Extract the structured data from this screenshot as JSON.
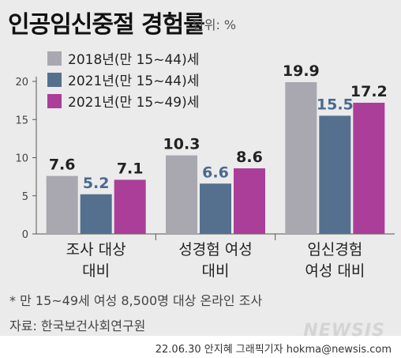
{
  "header": {
    "title": "인공임신중절 경험률",
    "unit": "단위: %"
  },
  "chart_data": {
    "type": "bar",
    "categories": [
      [
        "조사 대상",
        "대비"
      ],
      [
        "성경험 여성",
        "대비"
      ],
      [
        "임신경험",
        "여성 대비"
      ]
    ],
    "series": [
      {
        "name": "2018년(만 15~44)세",
        "color": "#a9a8b0",
        "values": [
          7.6,
          10.3,
          19.9
        ],
        "labelColor": "#222222"
      },
      {
        "name": "2021년(만 15~44)세",
        "color": "#55708e",
        "values": [
          5.2,
          6.6,
          15.5
        ],
        "labelColor": "#4a6a8f"
      },
      {
        "name": "2021년(만 15~49)세",
        "color": "#ab3e98",
        "values": [
          7.1,
          8.6,
          17.2
        ],
        "labelColor": "#222222"
      }
    ],
    "yticks": [
      0,
      5,
      10,
      15,
      20
    ],
    "ylim": [
      0,
      20
    ],
    "grid": false,
    "legend": "top-left"
  },
  "footer": {
    "note": "* 만 15~49세 여성 8,500명 대상 온라인 조사",
    "source": "자료: 한국보건사회연구원",
    "watermark": "NEWSIS",
    "credit": "22.06.30 안지혜 그래픽기자 hokma@newsis.com"
  }
}
